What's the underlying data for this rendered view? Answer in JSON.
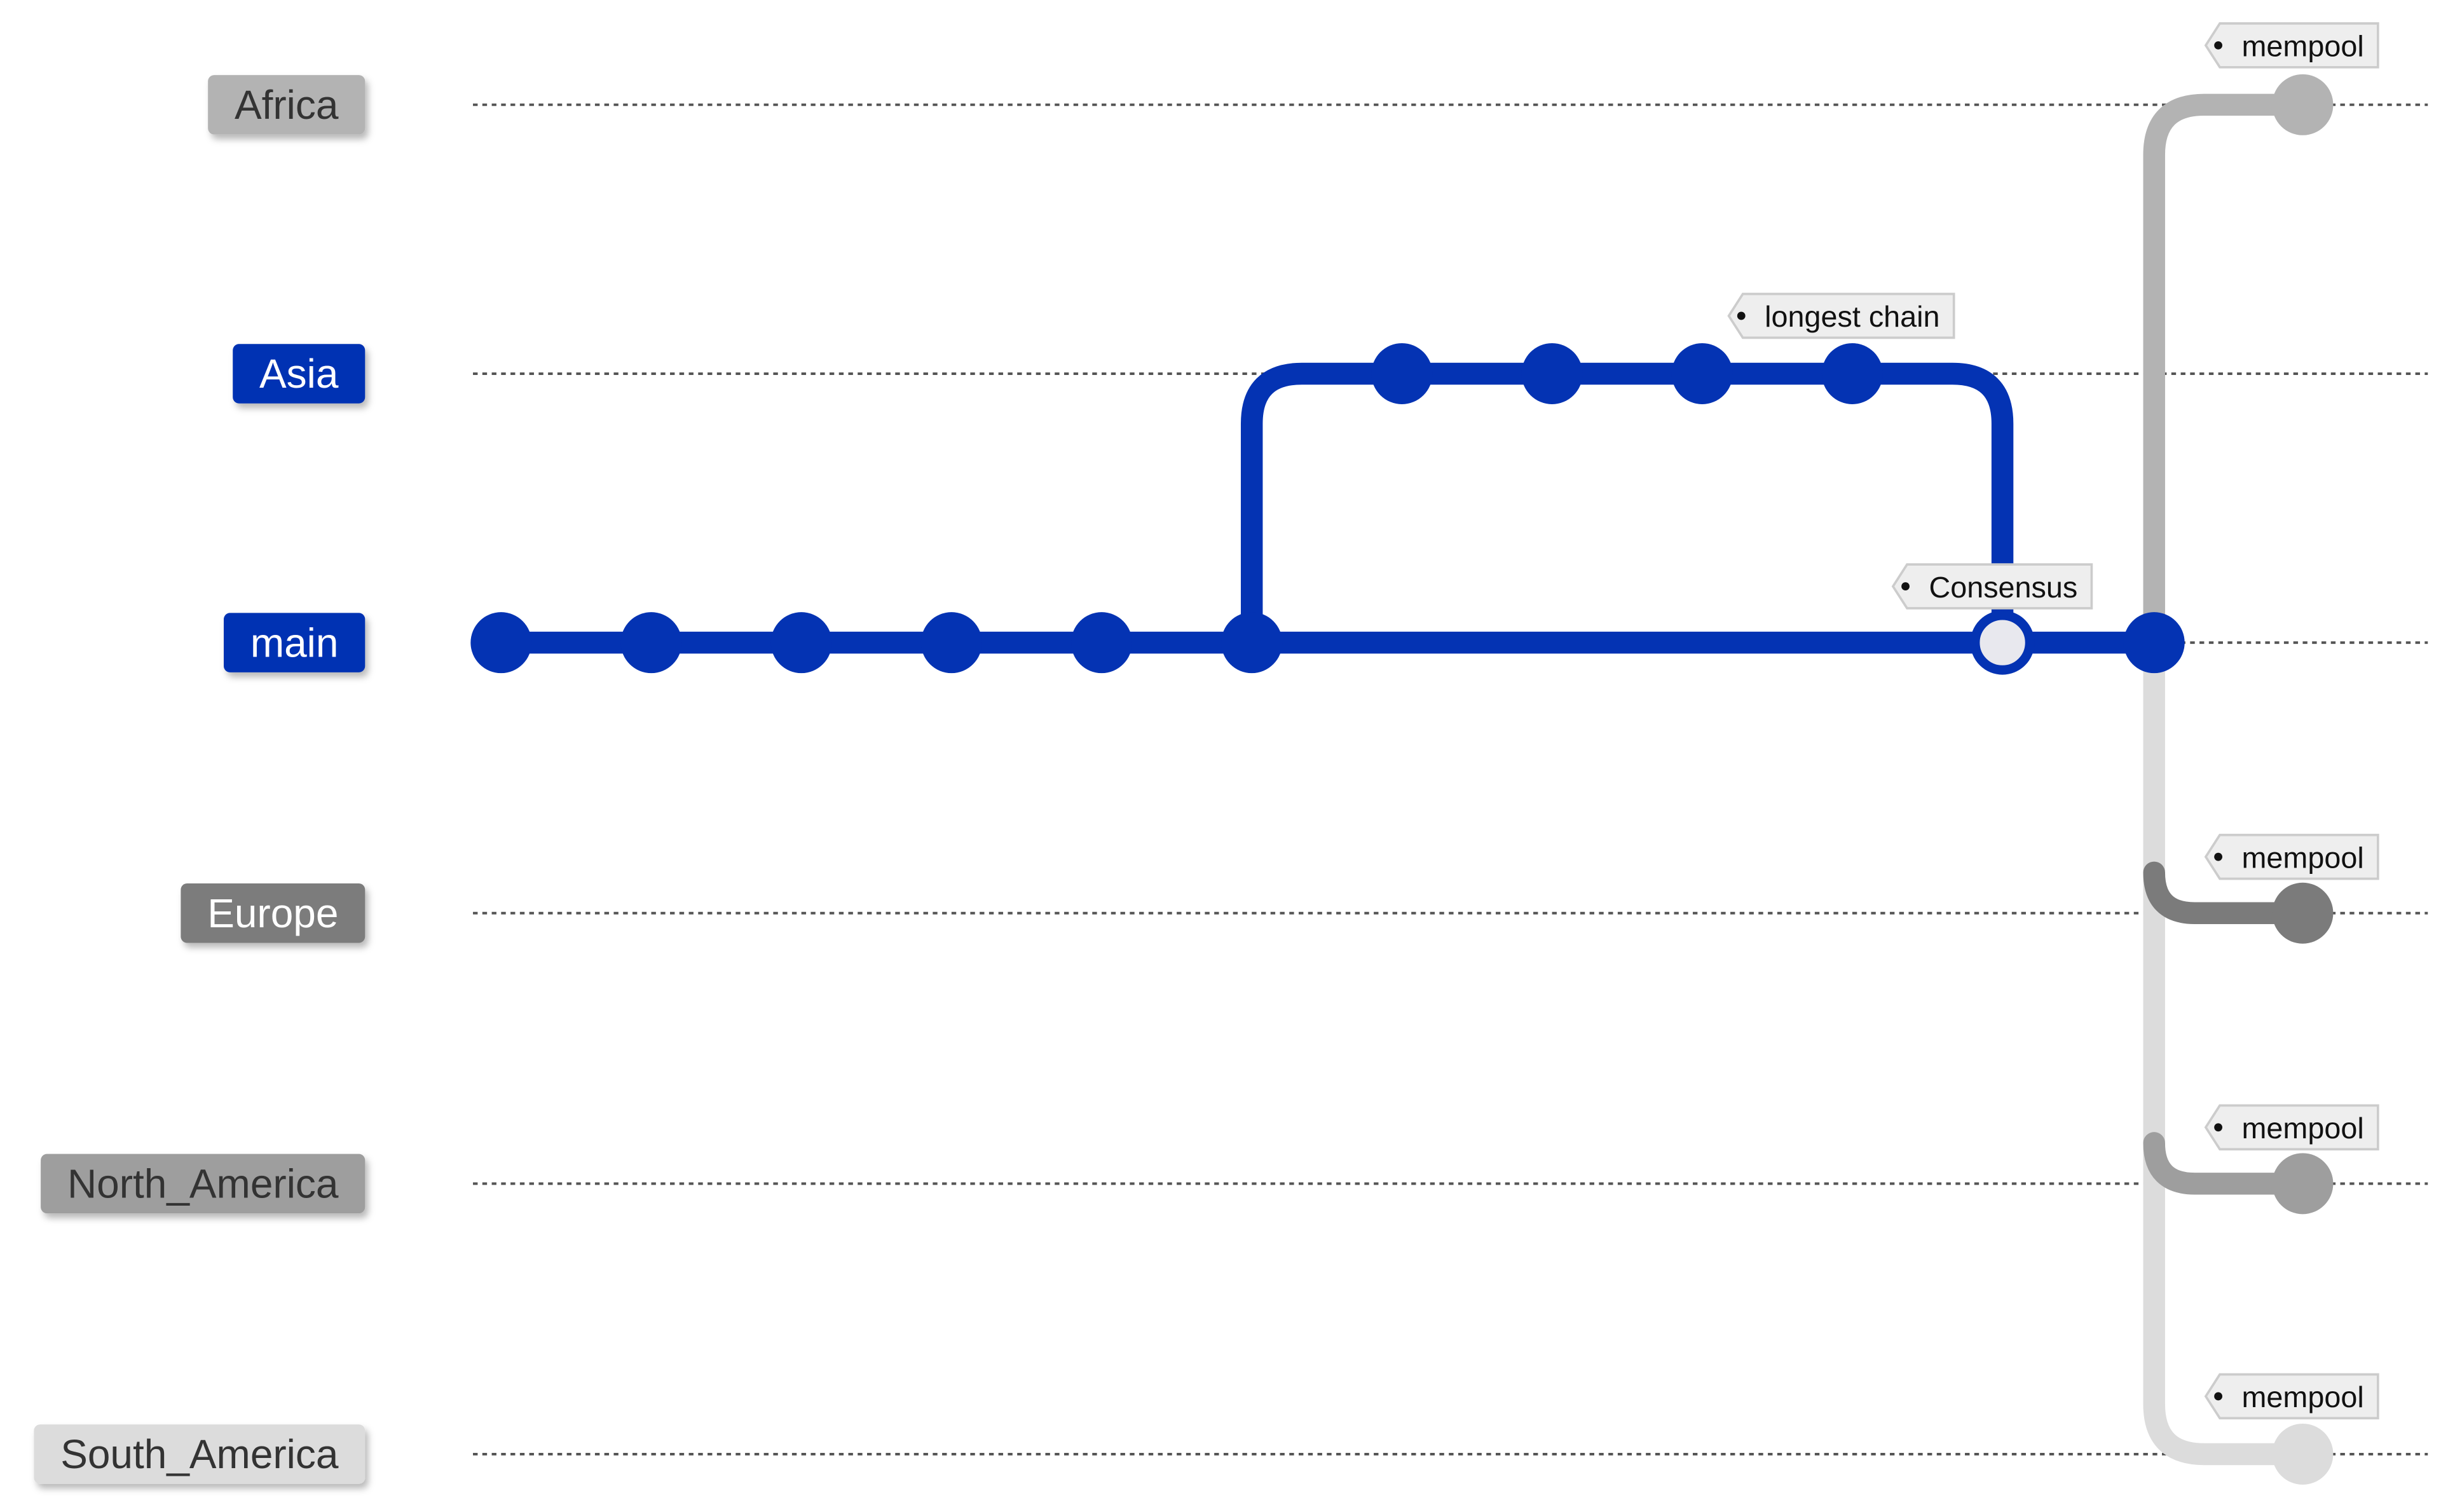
{
  "branches": [
    {
      "id": "africa",
      "label": "Africa",
      "color": "#b3b3b3",
      "text_color": "#333333"
    },
    {
      "id": "asia",
      "label": "Asia",
      "color": "#0433b3",
      "text_color": "#ffffff"
    },
    {
      "id": "main",
      "label": "main",
      "color": "#0433b3",
      "text_color": "#ffffff"
    },
    {
      "id": "europe",
      "label": "Europe",
      "color": "#7b7b7b",
      "text_color": "#ffffff"
    },
    {
      "id": "north_america",
      "label": "North_America",
      "color": "#9e9e9e",
      "text_color": "#333333"
    },
    {
      "id": "south_america",
      "label": "South_America",
      "color": "#dcdcdc",
      "text_color": "#333333"
    }
  ],
  "tags": [
    {
      "id": "tag-longest-chain",
      "label": "longest chain",
      "branch": "asia"
    },
    {
      "id": "tag-consensus",
      "label": "Consensus",
      "branch": "main"
    },
    {
      "id": "tag-mempool-africa",
      "label": "mempool",
      "branch": "africa"
    },
    {
      "id": "tag-mempool-europe",
      "label": "mempool",
      "branch": "europe"
    },
    {
      "id": "tag-mempool-north-america",
      "label": "mempool",
      "branch": "north_america"
    },
    {
      "id": "tag-mempool-south-america",
      "label": "mempool",
      "branch": "south_america"
    }
  ],
  "colors": {
    "main_line": "#0433b3",
    "africa_line": "#b3b3b3",
    "europe_line": "#7b7b7b",
    "north_america_line": "#9e9e9e",
    "south_america_line": "#dcdcdc",
    "guide_line": "#555555",
    "tag_fill": "#eeeeee",
    "tag_border": "#cccccc",
    "hollow_commit_fill": "#e8e8ee"
  }
}
